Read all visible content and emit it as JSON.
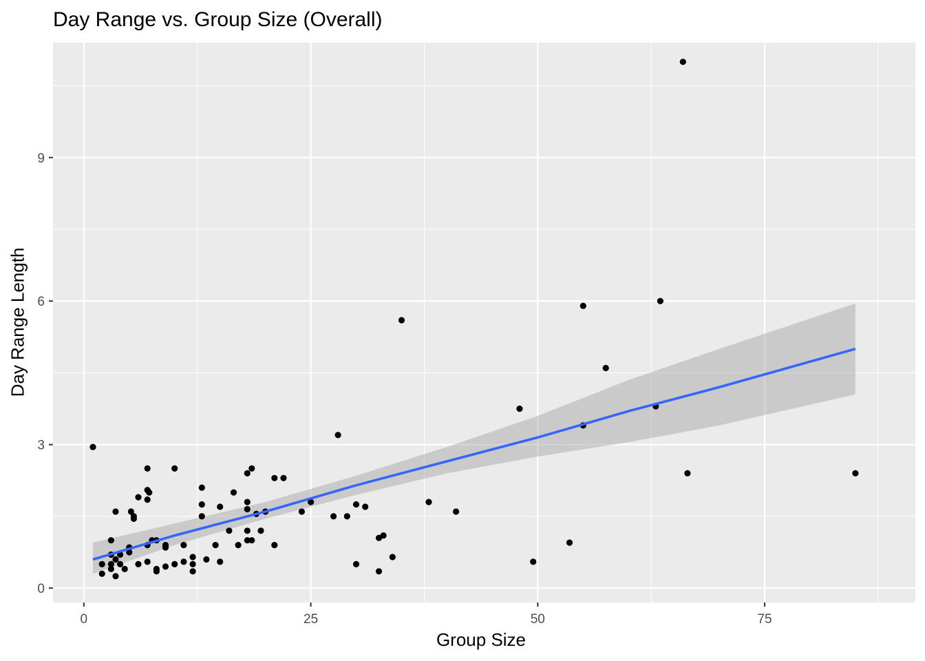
{
  "chart_data": {
    "type": "scatter",
    "title": "Day Range vs. Group Size (Overall)",
    "xlabel": "Group Size",
    "ylabel": "Day Range Length",
    "xlim": [
      -3.4,
      91.6
    ],
    "ylim": [
      -0.3,
      11.4
    ],
    "x_ticks": [
      0,
      25,
      50,
      75
    ],
    "y_ticks": [
      0,
      3,
      6,
      9
    ],
    "grid": true,
    "panel_background": "#ebebeb",
    "grid_color": "#ffffff",
    "point_color": "#000000",
    "series": [
      {
        "points": [
          [
            1,
            2.95
          ],
          [
            2,
            0.3
          ],
          [
            2,
            0.5
          ],
          [
            3,
            1.0
          ],
          [
            3,
            0.7
          ],
          [
            3,
            0.5
          ],
          [
            3,
            0.4
          ],
          [
            3.5,
            0.25
          ],
          [
            3.5,
            0.6
          ],
          [
            3.5,
            1.6
          ],
          [
            4,
            0.5
          ],
          [
            4,
            0.7
          ],
          [
            4.5,
            0.4
          ],
          [
            5,
            0.85
          ],
          [
            5,
            0.75
          ],
          [
            5.2,
            1.6
          ],
          [
            5.5,
            1.45
          ],
          [
            5.5,
            1.5
          ],
          [
            6,
            1.9
          ],
          [
            6,
            0.5
          ],
          [
            7,
            2.5
          ],
          [
            7,
            2.05
          ],
          [
            7,
            1.85
          ],
          [
            7,
            0.55
          ],
          [
            7,
            0.9
          ],
          [
            7.2,
            2.0
          ],
          [
            7.5,
            1.0
          ],
          [
            8,
            0.4
          ],
          [
            8,
            0.35
          ],
          [
            8,
            1.0
          ],
          [
            9,
            0.45
          ],
          [
            9,
            0.85
          ],
          [
            9,
            0.9
          ],
          [
            10,
            2.5
          ],
          [
            10,
            0.5
          ],
          [
            11,
            0.9
          ],
          [
            11,
            0.55
          ],
          [
            12,
            0.65
          ],
          [
            12,
            0.35
          ],
          [
            12,
            0.5
          ],
          [
            13,
            2.1
          ],
          [
            13,
            1.75
          ],
          [
            13,
            1.5
          ],
          [
            13.5,
            0.6
          ],
          [
            14.5,
            0.9
          ],
          [
            15,
            1.7
          ],
          [
            15,
            0.55
          ],
          [
            16,
            1.2
          ],
          [
            16.5,
            2.0
          ],
          [
            17,
            0.9
          ],
          [
            18,
            2.4
          ],
          [
            18,
            1.8
          ],
          [
            18,
            1.65
          ],
          [
            18,
            1.2
          ],
          [
            18,
            1.0
          ],
          [
            18.5,
            2.5
          ],
          [
            18.5,
            1.0
          ],
          [
            19,
            1.55
          ],
          [
            19.5,
            1.2
          ],
          [
            20,
            1.6
          ],
          [
            21,
            2.3
          ],
          [
            21,
            0.9
          ],
          [
            22,
            2.3
          ],
          [
            24,
            1.6
          ],
          [
            25,
            1.8
          ],
          [
            27.5,
            1.5
          ],
          [
            28,
            3.2
          ],
          [
            29,
            1.5
          ],
          [
            30,
            1.75
          ],
          [
            30,
            0.5
          ],
          [
            31,
            1.7
          ],
          [
            32.5,
            1.05
          ],
          [
            32.5,
            0.35
          ],
          [
            33,
            1.1
          ],
          [
            34,
            0.65
          ],
          [
            35,
            5.6
          ],
          [
            38,
            1.8
          ],
          [
            41,
            1.6
          ],
          [
            48,
            3.75
          ],
          [
            49.5,
            0.55
          ],
          [
            53.5,
            0.95
          ],
          [
            55,
            5.9
          ],
          [
            55,
            3.4
          ],
          [
            57.5,
            4.6
          ],
          [
            63,
            3.8
          ],
          [
            63.5,
            6.0
          ],
          [
            66,
            11.0
          ],
          [
            66.5,
            2.4
          ],
          [
            85,
            2.4
          ]
        ]
      }
    ],
    "fit": {
      "method": "lm",
      "color": "#3366ff",
      "band_color": "#999999",
      "band_opacity": 0.4,
      "x": [
        1,
        10,
        20,
        30,
        40,
        50,
        60,
        70,
        85
      ],
      "y": [
        0.6,
        1.1,
        1.6,
        2.15,
        2.65,
        3.15,
        3.7,
        4.2,
        5.0
      ],
      "lower": [
        0.3,
        0.9,
        1.45,
        1.95,
        2.4,
        2.75,
        3.05,
        3.4,
        4.05
      ],
      "upper": [
        0.95,
        1.35,
        1.8,
        2.35,
        2.95,
        3.6,
        4.35,
        5.0,
        5.95
      ]
    }
  }
}
